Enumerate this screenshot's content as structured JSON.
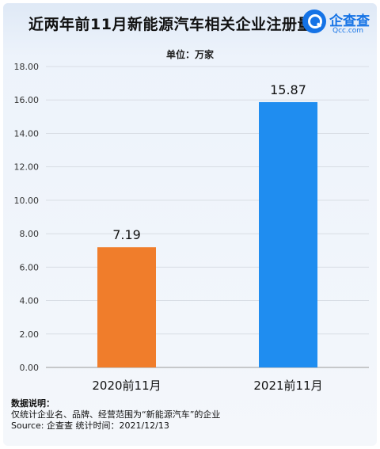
{
  "title": "近两年前11月新能源汽车相关企业注册量",
  "brand": {
    "name_cn": "企查查",
    "name_en": "Qcc.com"
  },
  "unit_label": "单位：万家",
  "chart_data": {
    "type": "bar",
    "categories": [
      "2020前11月",
      "2021前11月"
    ],
    "values": [
      7.19,
      15.87
    ],
    "value_labels": [
      "7.19",
      "15.87"
    ],
    "ylim": [
      0,
      18
    ],
    "yticks": [
      "0.00",
      "2.00",
      "4.00",
      "6.00",
      "8.00",
      "10.00",
      "12.00",
      "14.00",
      "16.00",
      "18.00"
    ],
    "bar_colors": [
      "#f07d2b",
      "#1f8df0"
    ],
    "grid": true
  },
  "footer": {
    "heading": "数据说明：",
    "line1": "仅统计企业名、品牌、经营范围为“新能源汽车”的企业",
    "line2": "Source:  企查查   统计时间：2021/12/13"
  }
}
